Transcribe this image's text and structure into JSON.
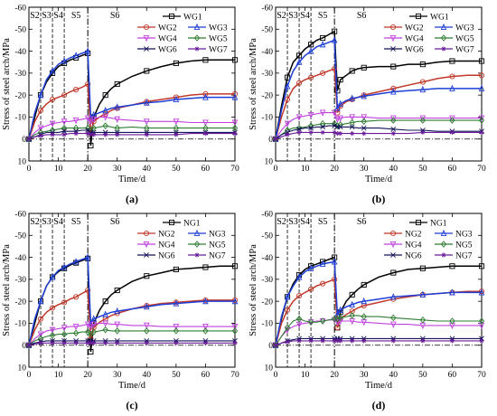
{
  "colors": {
    "WG1": "#000000",
    "WG2": "#c0392b",
    "WG3": "#1f3fd6",
    "WG4": "#c040e0",
    "WG5": "#2e7d32",
    "WG6": "#14145a",
    "WG7": "#6a1b9a",
    "NG1": "#000000",
    "NG2": "#c0392b",
    "NG3": "#1f3fd6",
    "NG4": "#c040e0",
    "NG5": "#2e7d32",
    "NG6": "#14145a",
    "NG7": "#6a1b9a"
  },
  "chart_data": [
    {
      "type": "line",
      "panel_label": "(a)",
      "xlabel": "Time/d",
      "ylabel": "Stress of steel arch/MPa",
      "xlim": [
        0,
        70
      ],
      "ylim": [
        10,
        -60
      ],
      "xticks": [
        0,
        10,
        20,
        30,
        40,
        50,
        60,
        70
      ],
      "yticks": [
        -60,
        -50,
        -40,
        -30,
        -20,
        -10,
        0,
        10
      ],
      "stages": [
        "S2",
        "S3",
        "S4",
        "S5",
        "S6"
      ],
      "stage_boundaries": [
        4,
        8,
        12,
        20
      ],
      "legend_position": "top-right",
      "x": [
        0,
        2,
        4,
        6,
        8,
        10,
        12,
        14,
        16,
        18,
        20,
        21,
        22,
        24,
        26,
        28,
        30,
        35,
        40,
        45,
        50,
        55,
        60,
        65,
        70
      ],
      "series": [
        {
          "name": "WG1",
          "marker": "square",
          "values": [
            0,
            -10,
            -20,
            -26,
            -30,
            -33,
            -34.5,
            -36,
            -37,
            -38,
            -39,
            3,
            -10,
            -16,
            -20,
            -23,
            -25,
            -28.5,
            -31,
            -33,
            -34.5,
            -35.5,
            -36,
            -36,
            -36
          ]
        },
        {
          "name": "WG2",
          "marker": "circle",
          "values": [
            0,
            -8,
            -13,
            -16,
            -18,
            -19,
            -20,
            -21.5,
            -22.5,
            -23.5,
            -25,
            -3,
            -8,
            -10,
            -11.5,
            -13,
            -14,
            -15.5,
            -17,
            -18,
            -19,
            -20,
            -20.5,
            -20.5,
            -20.5
          ]
        },
        {
          "name": "WG3",
          "marker": "triangle",
          "values": [
            0,
            -12,
            -20,
            -27,
            -31,
            -34,
            -35.5,
            -37,
            -38,
            -39,
            -40,
            -10,
            -11,
            -12,
            -13,
            -14,
            -14.5,
            -15.5,
            -16.5,
            -17,
            -18,
            -18.5,
            -19,
            -19,
            -19
          ]
        },
        {
          "name": "WG4",
          "marker": "triangle-down",
          "values": [
            0,
            -3,
            -5,
            -6,
            -7,
            -7.5,
            -8,
            -8,
            -8.5,
            -9,
            -9.5,
            -8,
            -9,
            -10,
            -10,
            -9.5,
            -9,
            -8.5,
            -8,
            -8,
            -8,
            -7.5,
            -7.5,
            -7.5,
            -7.5
          ]
        },
        {
          "name": "WG5",
          "marker": "diamond",
          "values": [
            0,
            -2,
            -3,
            -3.5,
            -4,
            -4.5,
            -5,
            -5,
            -5,
            -5,
            -5,
            -4,
            -5,
            -5.5,
            -6,
            -5.5,
            -5,
            -5.5,
            -5,
            -5,
            -5,
            -5,
            -5,
            -5,
            -5
          ]
        },
        {
          "name": "WG6",
          "marker": "cross",
          "values": [
            0,
            -1,
            -2,
            -3,
            -3,
            -3,
            -3.5,
            -3.5,
            -3.5,
            -4,
            -4,
            -3,
            -3,
            -3,
            -3,
            -3,
            -3,
            -3,
            -3,
            -3,
            -3,
            -3,
            -3,
            -3,
            -3
          ]
        },
        {
          "name": "WG7",
          "marker": "star",
          "values": [
            0,
            -1,
            -1.5,
            -2,
            -2,
            -2,
            -2,
            -2.5,
            -2.5,
            -2.5,
            -2.5,
            -2,
            -2,
            -2,
            -2,
            -2,
            -2,
            -2,
            -2,
            -2,
            -2,
            -2.5,
            -2.5,
            -2.5,
            -2.5
          ]
        }
      ]
    },
    {
      "type": "line",
      "panel_label": "(b)",
      "xlabel": "Time/d",
      "ylabel": "Stress of steel arch/MPa",
      "xlim": [
        0,
        70
      ],
      "ylim": [
        10,
        -60
      ],
      "xticks": [
        0,
        10,
        20,
        30,
        40,
        50,
        60,
        70
      ],
      "yticks": [
        -60,
        -50,
        -40,
        -30,
        -20,
        -10,
        0,
        10
      ],
      "stages": [
        "S2",
        "S3",
        "S4",
        "S5",
        "S6"
      ],
      "stage_boundaries": [
        4,
        8,
        12,
        20
      ],
      "legend_position": "top-right",
      "x": [
        0,
        2,
        4,
        6,
        8,
        10,
        12,
        14,
        16,
        18,
        20,
        21,
        22,
        24,
        26,
        28,
        30,
        35,
        40,
        45,
        50,
        55,
        60,
        65,
        70
      ],
      "series": [
        {
          "name": "WG1",
          "marker": "square",
          "values": [
            0,
            -15,
            -28,
            -35,
            -38,
            -41,
            -43,
            -45,
            -46,
            -47.5,
            -49,
            -22,
            -27,
            -29,
            -31,
            -32,
            -32.5,
            -33,
            -33,
            -34,
            -34,
            -35,
            -35.5,
            -35.5,
            -35.5
          ]
        },
        {
          "name": "WG2",
          "marker": "circle",
          "values": [
            0,
            -10,
            -18,
            -23,
            -25.5,
            -27,
            -28,
            -29,
            -30,
            -31,
            -32,
            -12,
            -15,
            -17,
            -18,
            -19,
            -20,
            -21.5,
            -23,
            -24.5,
            -26,
            -27.5,
            -28.5,
            -29,
            -29
          ]
        },
        {
          "name": "WG3",
          "marker": "triangle",
          "values": [
            0,
            -13,
            -24,
            -31,
            -35,
            -38,
            -40,
            -42,
            -43,
            -44,
            -45,
            -14,
            -16,
            -17.5,
            -18.5,
            -19,
            -19.5,
            -20.5,
            -21.5,
            -22,
            -22.5,
            -23,
            -23,
            -23,
            -23
          ]
        },
        {
          "name": "WG4",
          "marker": "triangle-down",
          "values": [
            0,
            -4,
            -7,
            -9,
            -10,
            -10.5,
            -11,
            -11.5,
            -12,
            -12,
            -12,
            -9,
            -9.5,
            -10,
            -10,
            -10,
            -10,
            -9.5,
            -9.5,
            -9.5,
            -9.5,
            -9.5,
            -9.5,
            -9.5,
            -9.5
          ]
        },
        {
          "name": "WG5",
          "marker": "diamond",
          "values": [
            0,
            -2,
            -4,
            -5,
            -5,
            -5.5,
            -6,
            -6.5,
            -7,
            -7,
            -7,
            -6,
            -6.5,
            -7,
            -7.5,
            -8,
            -8,
            -8.5,
            -8.5,
            -8.5,
            -8.5,
            -8.5,
            -8.5,
            -8.5,
            -8.5
          ]
        },
        {
          "name": "WG6",
          "marker": "cross",
          "values": [
            0,
            -2,
            -3,
            -4,
            -4.5,
            -5,
            -5,
            -5.5,
            -5.5,
            -6,
            -6,
            -5.5,
            -5.5,
            -5.5,
            -5.5,
            -5,
            -5,
            -5,
            -4.5,
            -4,
            -4,
            -3.5,
            -3.5,
            -3.5,
            -3.5
          ]
        },
        {
          "name": "WG7",
          "marker": "star",
          "values": [
            0,
            -1,
            -2,
            -2.5,
            -3,
            -3,
            -3,
            -3,
            -3,
            -3,
            -3,
            -2.5,
            -2.5,
            -2.5,
            -2.5,
            -2.5,
            -2.5,
            -2.5,
            -2.5,
            -2.5,
            -3,
            -3,
            -3,
            -3,
            -3
          ]
        }
      ]
    },
    {
      "type": "line",
      "panel_label": "(c)",
      "xlabel": "Time/d",
      "ylabel": "Stress of steel arch/MPa",
      "xlim": [
        0,
        70
      ],
      "ylim": [
        10,
        -60
      ],
      "xticks": [
        0,
        10,
        20,
        30,
        40,
        50,
        60,
        70
      ],
      "yticks": [
        -60,
        -50,
        -40,
        -30,
        -20,
        -10,
        0,
        10
      ],
      "stages": [
        "S2",
        "S3",
        "S4",
        "S5",
        "S6"
      ],
      "stage_boundaries": [
        4,
        8,
        12,
        20
      ],
      "legend_position": "top-right",
      "x": [
        0,
        2,
        4,
        6,
        8,
        10,
        12,
        14,
        16,
        18,
        20,
        21,
        22,
        24,
        26,
        28,
        30,
        35,
        40,
        45,
        50,
        55,
        60,
        65,
        70
      ],
      "series": [
        {
          "name": "NG1",
          "marker": "square",
          "values": [
            0,
            -10,
            -20,
            -27,
            -31,
            -33.5,
            -35,
            -36.5,
            -37.5,
            -38.5,
            -39.5,
            3,
            -10,
            -16,
            -20,
            -23,
            -25,
            -29,
            -31.5,
            -33,
            -34.5,
            -35,
            -35.5,
            -36,
            -36
          ]
        },
        {
          "name": "NG2",
          "marker": "circle",
          "values": [
            0,
            -7,
            -12,
            -15,
            -17,
            -18.5,
            -19.5,
            -21,
            -22,
            -23.5,
            -25,
            -3,
            -8,
            -10.5,
            -12,
            -13.5,
            -14.5,
            -16.5,
            -18,
            -19,
            -19.5,
            -20,
            -20.5,
            -20.5,
            -20.5
          ]
        },
        {
          "name": "NG3",
          "marker": "triangle",
          "values": [
            0,
            -12,
            -20,
            -27,
            -31,
            -34,
            -35.5,
            -37,
            -38,
            -39,
            -40,
            -10,
            -12,
            -13,
            -14,
            -15,
            -15.5,
            -16.5,
            -17.5,
            -18.5,
            -19,
            -19.5,
            -20,
            -20,
            -20
          ]
        },
        {
          "name": "NG4",
          "marker": "triangle-down",
          "values": [
            0,
            -3,
            -5,
            -6.5,
            -7,
            -7.5,
            -8,
            -8.5,
            -8.5,
            -9,
            -9.5,
            -8.5,
            -9.5,
            -10,
            -10,
            -9.5,
            -9.5,
            -9,
            -9,
            -8.5,
            -8.5,
            -8.5,
            -8.5,
            -8.5,
            -8.5
          ]
        },
        {
          "name": "NG5",
          "marker": "diamond",
          "values": [
            0,
            -2,
            -3,
            -4,
            -4.5,
            -5,
            -5,
            -5.5,
            -5.5,
            -6,
            -6,
            -5,
            -6,
            -6.5,
            -7,
            -6.5,
            -6.5,
            -6.5,
            -6.5,
            -6.5,
            -6.5,
            -6.5,
            -6.5,
            -6.5,
            -6.5
          ]
        },
        {
          "name": "NG6",
          "marker": "cross",
          "values": [
            0,
            -1,
            -1.5,
            -2,
            -2,
            -2,
            -2,
            -2,
            -2,
            -2,
            -2,
            -2,
            -2,
            -2,
            -2,
            -2,
            -2,
            -2,
            -2,
            -2,
            -2,
            -2,
            -2,
            -2,
            -2
          ]
        },
        {
          "name": "NG7",
          "marker": "star",
          "values": [
            0,
            -0.5,
            -1,
            -1,
            -1,
            -1,
            -1,
            -1,
            -1,
            -1,
            -1,
            -1,
            -1,
            -1,
            -1,
            -1,
            -1,
            -1,
            -1,
            -1,
            -1,
            -1,
            -1,
            -1,
            -1
          ]
        }
      ]
    },
    {
      "type": "line",
      "panel_label": "(d)",
      "xlabel": "Time/d",
      "ylabel": "Stress of steel arch/MPa",
      "xlim": [
        0,
        70
      ],
      "ylim": [
        10,
        -60
      ],
      "xticks": [
        0,
        10,
        20,
        30,
        40,
        50,
        60,
        70
      ],
      "yticks": [
        -60,
        -50,
        -40,
        -30,
        -20,
        -10,
        0,
        10
      ],
      "stages": [
        "S2",
        "S3",
        "S4",
        "S5",
        "S6"
      ],
      "stage_boundaries": [
        4,
        8,
        12,
        20
      ],
      "legend_position": "top-right",
      "x": [
        0,
        2,
        4,
        6,
        8,
        10,
        12,
        14,
        16,
        18,
        20,
        21,
        22,
        24,
        26,
        28,
        30,
        35,
        40,
        45,
        50,
        55,
        60,
        65,
        70
      ],
      "series": [
        {
          "name": "NG1",
          "marker": "square",
          "values": [
            0,
            -12,
            -22,
            -28,
            -32,
            -34.5,
            -36,
            -37,
            -38,
            -39,
            -40,
            -8,
            -15,
            -20,
            -23,
            -25.5,
            -27.5,
            -31,
            -33,
            -34.5,
            -35,
            -35.5,
            -36,
            -36,
            -36
          ]
        },
        {
          "name": "NG2",
          "marker": "circle",
          "values": [
            0,
            -10,
            -16,
            -20,
            -22.5,
            -24,
            -25.5,
            -27,
            -28,
            -29,
            -30,
            -8,
            -12,
            -14,
            -15.5,
            -17,
            -18,
            -19.5,
            -21,
            -22,
            -23,
            -23.5,
            -24,
            -24.5,
            -24.5
          ]
        },
        {
          "name": "NG3",
          "marker": "triangle",
          "values": [
            0,
            -13,
            -22,
            -27,
            -31,
            -33.5,
            -35,
            -36,
            -37,
            -37.5,
            -38,
            -14,
            -16,
            -17.5,
            -18.5,
            -19.5,
            -20,
            -21,
            -22,
            -22.5,
            -23,
            -23.5,
            -24,
            -24,
            -24
          ]
        },
        {
          "name": "NG4",
          "marker": "triangle-down",
          "values": [
            0,
            -4,
            -7,
            -8.5,
            -9.5,
            -10,
            -10.5,
            -11,
            -11,
            -11.5,
            -11.5,
            -10.5,
            -11,
            -11,
            -11,
            -10.5,
            -10.5,
            -10,
            -9.5,
            -9.5,
            -9,
            -9,
            -9,
            -9,
            -9
          ]
        },
        {
          "name": "NG5",
          "marker": "diamond",
          "values": [
            0,
            -4,
            -8,
            -11,
            -12,
            -11,
            -10.5,
            -10.5,
            -11,
            -11.5,
            -12,
            -12,
            -12.5,
            -13,
            -13.5,
            -13.5,
            -13,
            -13,
            -12.5,
            -12,
            -11.5,
            -11,
            -11,
            -11,
            -11
          ]
        },
        {
          "name": "NG6",
          "marker": "cross",
          "values": [
            0,
            -1,
            -2,
            -2.5,
            -3,
            -3,
            -3,
            -3,
            -3,
            -3,
            -3,
            -3,
            -3,
            -3,
            -3,
            -3,
            -3,
            -3,
            -3,
            -3,
            -3,
            -3,
            -3,
            -3,
            -3
          ]
        },
        {
          "name": "NG7",
          "marker": "star",
          "values": [
            0,
            -1,
            -1.5,
            -2,
            -2,
            -2,
            -2,
            -2,
            -2,
            -2,
            -2,
            -2,
            -2,
            -2,
            -2,
            -2,
            -2,
            -2,
            -2,
            -2,
            -2,
            -2,
            -2,
            -2,
            -2
          ]
        }
      ]
    }
  ]
}
